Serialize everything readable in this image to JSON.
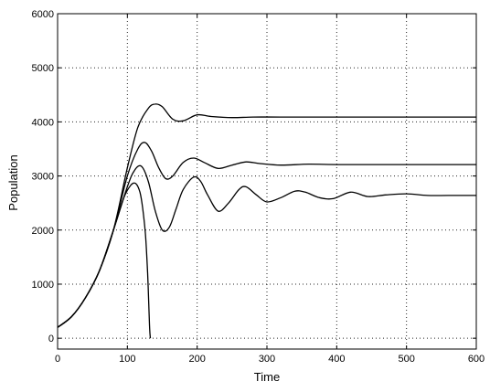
{
  "chart_data": {
    "type": "line",
    "title": "",
    "xlabel": "Time",
    "ylabel": "Population",
    "xlim": [
      0,
      600
    ],
    "ylim": [
      -200,
      6000
    ],
    "xticks": [
      0,
      100,
      200,
      300,
      400,
      500,
      600
    ],
    "yticks": [
      0,
      1000,
      2000,
      3000,
      4000,
      5000,
      6000
    ],
    "grid": true,
    "line_color": "#000000",
    "series": [
      {
        "x": [
          0,
          20,
          40,
          60,
          80,
          100,
          115,
          130,
          140,
          150,
          165,
          180,
          200,
          220,
          250,
          280,
          320,
          400,
          500,
          600
        ],
        "y": [
          200,
          400,
          750,
          1250,
          2000,
          3150,
          3900,
          4250,
          4330,
          4280,
          4050,
          4020,
          4130,
          4100,
          4080,
          4090,
          4090,
          4090,
          4090,
          4090
        ]
      },
      {
        "x": [
          0,
          20,
          40,
          60,
          80,
          100,
          115,
          125,
          135,
          145,
          155,
          165,
          180,
          195,
          210,
          230,
          250,
          270,
          290,
          320,
          360,
          400,
          500,
          600
        ],
        "y": [
          200,
          400,
          750,
          1250,
          2000,
          3000,
          3500,
          3620,
          3450,
          3150,
          2950,
          3000,
          3250,
          3330,
          3250,
          3140,
          3200,
          3260,
          3230,
          3200,
          3220,
          3210,
          3210,
          3210
        ]
      },
      {
        "x": [
          0,
          20,
          40,
          60,
          80,
          100,
          110,
          120,
          130,
          140,
          150,
          160,
          170,
          180,
          195,
          205,
          215,
          230,
          245,
          260,
          270,
          285,
          300,
          320,
          340,
          355,
          375,
          395,
          420,
          445,
          470,
          500,
          530,
          560,
          600
        ],
        "y": [
          200,
          400,
          750,
          1250,
          2000,
          2800,
          3100,
          3180,
          2900,
          2350,
          2000,
          2050,
          2400,
          2750,
          2980,
          2900,
          2650,
          2350,
          2500,
          2750,
          2800,
          2650,
          2520,
          2600,
          2720,
          2700,
          2600,
          2580,
          2700,
          2620,
          2650,
          2670,
          2640,
          2640,
          2640
        ]
      },
      {
        "x": [
          0,
          20,
          40,
          60,
          80,
          95,
          105,
          112,
          118,
          122,
          126,
          129,
          131,
          132,
          133
        ],
        "y": [
          200,
          400,
          750,
          1250,
          2000,
          2600,
          2830,
          2860,
          2700,
          2400,
          1900,
          1200,
          500,
          150,
          0
        ]
      }
    ]
  }
}
